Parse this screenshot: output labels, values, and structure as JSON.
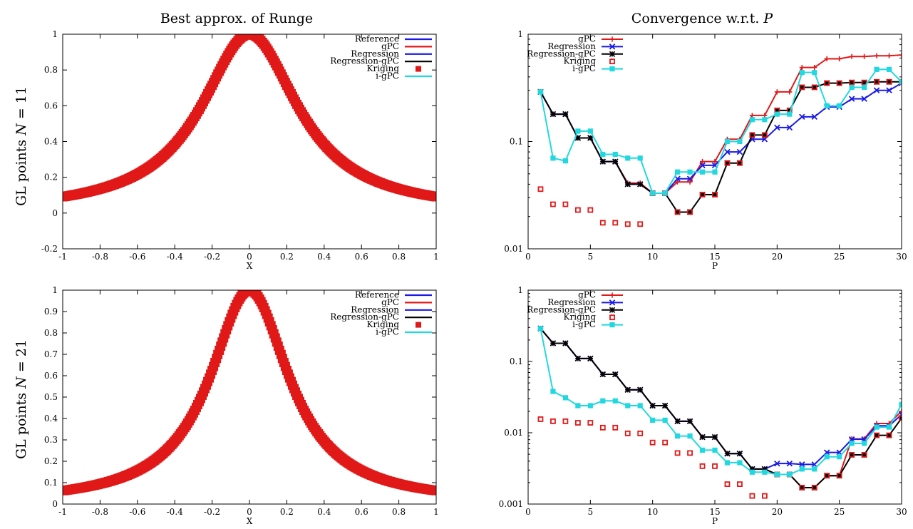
{
  "figure": {
    "col_titles": [
      "Best approx. of Runge",
      "Convergence w.r.t. "
    ],
    "col_title_italic": [
      "",
      "P"
    ],
    "row_labels": [
      {
        "text": "GL points ",
        "italic": "N",
        "rest": " = 11"
      },
      {
        "text": "GL points ",
        "italic": "N",
        "rest": " = 21"
      }
    ]
  },
  "colors": {
    "Reference": "#1a1ae6",
    "gPC": "#e01818",
    "Regression": "#1a1ae6",
    "Regression-gPC": "#000000",
    "Kriging": "#e01818",
    "i-gPC": "#22d8e0"
  },
  "chart_data": [
    {
      "id": "approx_N11",
      "type": "line",
      "title": "",
      "xlabel": "X",
      "ylabel": "",
      "xlim": [
        -1,
        1
      ],
      "ylim": [
        -0.2,
        1
      ],
      "xticks": [
        -1,
        -0.8,
        -0.6,
        -0.4,
        -0.2,
        0,
        0.2,
        0.4,
        0.6,
        0.8,
        1
      ],
      "xtick_labels": [
        "-1",
        "-0.8",
        "-0.6",
        "-0.4",
        "-0.2",
        "0",
        "0.2",
        "0.4",
        "0.6",
        "0.8",
        "1"
      ],
      "yticks": [
        -0.2,
        0,
        0.2,
        0.4,
        0.6,
        0.8,
        1
      ],
      "ytick_labels": [
        "-0.2",
        "0",
        "0.2",
        "0.4",
        "0.6",
        "0.8",
        "1"
      ],
      "log_y": false,
      "grid": false,
      "legend_position": "top-right",
      "legend": [
        "Reference",
        "gPC",
        "Regression",
        "Regression-gPC",
        "Kriging",
        "i-gPC"
      ],
      "runge_scale": 10,
      "nodes": 11,
      "series": [
        {
          "name": "Reference",
          "kind": "runge"
        },
        {
          "name": "gPC",
          "kind": "interp"
        },
        {
          "name": "Regression",
          "kind": "interp"
        },
        {
          "name": "Regression-gPC",
          "kind": "interp"
        },
        {
          "name": "Kriging",
          "kind": "kriging"
        },
        {
          "name": "i-gPC",
          "kind": "interp"
        }
      ]
    },
    {
      "id": "conv_N11",
      "type": "line",
      "title": "",
      "xlabel": "P",
      "ylabel": "",
      "xlim": [
        0,
        30
      ],
      "ylim": [
        0.01,
        1
      ],
      "xticks": [
        0,
        5,
        10,
        15,
        20,
        25,
        30
      ],
      "xtick_labels": [
        "0",
        "5",
        "10",
        "15",
        "20",
        "25",
        "30"
      ],
      "yticks": [
        0.01,
        0.1,
        1
      ],
      "ytick_labels": [
        "0.01",
        "0.1",
        "1"
      ],
      "log_y": true,
      "grid": false,
      "legend_position": "top-left",
      "legend": [
        "gPC",
        "Regression",
        "Regression-gPC",
        "Kriging",
        "i-gPC"
      ],
      "series": [
        {
          "name": "gPC",
          "marker": "plus",
          "x": [
            1,
            2,
            3,
            4,
            5,
            6,
            7,
            8,
            9,
            10,
            11,
            12,
            13,
            14,
            15,
            16,
            17,
            18,
            19,
            20,
            21,
            22,
            23,
            24,
            25,
            26,
            27,
            28,
            29,
            30
          ],
          "values": [
            0.29,
            0.18,
            0.18,
            0.108,
            0.108,
            0.065,
            0.065,
            0.041,
            0.041,
            0.033,
            0.033,
            0.042,
            0.042,
            0.065,
            0.065,
            0.105,
            0.105,
            0.175,
            0.175,
            0.29,
            0.29,
            0.49,
            0.49,
            0.59,
            0.59,
            0.62,
            0.62,
            0.63,
            0.63,
            0.64
          ]
        },
        {
          "name": "Regression",
          "marker": "x",
          "x": [
            1,
            2,
            3,
            4,
            5,
            6,
            7,
            8,
            9,
            10,
            11,
            12,
            13,
            14,
            15,
            16,
            17,
            18,
            19,
            20,
            21,
            22,
            23,
            24,
            25,
            26,
            27,
            28,
            29,
            30
          ],
          "values": [
            0.29,
            0.18,
            0.18,
            0.108,
            0.108,
            0.065,
            0.065,
            0.04,
            0.04,
            0.033,
            0.033,
            0.045,
            0.045,
            0.06,
            0.06,
            0.08,
            0.08,
            0.105,
            0.105,
            0.135,
            0.135,
            0.17,
            0.17,
            0.21,
            0.21,
            0.25,
            0.25,
            0.3,
            0.3,
            0.35
          ]
        },
        {
          "name": "Regression-gPC",
          "marker": "star",
          "x": [
            1,
            2,
            3,
            4,
            5,
            6,
            7,
            8,
            9,
            10,
            11,
            12,
            13,
            14,
            15,
            16,
            17,
            18,
            19,
            20,
            21,
            22,
            23,
            24,
            25,
            26,
            27,
            28,
            29,
            30
          ],
          "values": [
            0.29,
            0.18,
            0.18,
            0.108,
            0.108,
            0.065,
            0.065,
            0.04,
            0.04,
            0.033,
            0.033,
            0.022,
            0.022,
            0.032,
            0.032,
            0.063,
            0.063,
            0.115,
            0.115,
            0.195,
            0.195,
            0.32,
            0.32,
            0.35,
            0.35,
            0.355,
            0.355,
            0.36,
            0.36,
            0.36
          ]
        },
        {
          "name": "Kriging",
          "marker": "opensquare",
          "line": false,
          "x": [
            1,
            2,
            3,
            4,
            5,
            6,
            7,
            8,
            9,
            10,
            11,
            12,
            13,
            14,
            15,
            16,
            17,
            18,
            19,
            20,
            21,
            22,
            23,
            24,
            25,
            26,
            27,
            28,
            29,
            30
          ],
          "values": [
            0.036,
            0.026,
            0.026,
            0.023,
            0.023,
            0.0175,
            0.0175,
            0.017,
            0.017,
            0.033,
            0.033,
            0.022,
            0.022,
            0.032,
            0.032,
            0.063,
            0.063,
            0.115,
            0.115,
            0.195,
            0.195,
            0.32,
            0.32,
            0.35,
            0.35,
            0.355,
            0.355,
            0.36,
            0.36,
            0.36
          ]
        },
        {
          "name": "i-gPC",
          "marker": "filledsquare",
          "x": [
            1,
            2,
            3,
            4,
            5,
            6,
            7,
            8,
            9,
            10,
            11,
            12,
            13,
            14,
            15,
            16,
            17,
            18,
            19,
            20,
            21,
            22,
            23,
            24,
            25,
            26,
            27,
            28,
            29,
            30
          ],
          "values": [
            0.29,
            0.07,
            0.066,
            0.125,
            0.125,
            0.076,
            0.076,
            0.07,
            0.07,
            0.033,
            0.033,
            0.052,
            0.052,
            0.052,
            0.052,
            0.1,
            0.1,
            0.16,
            0.16,
            0.18,
            0.18,
            0.44,
            0.44,
            0.215,
            0.215,
            0.32,
            0.32,
            0.47,
            0.47,
            0.36
          ]
        }
      ]
    },
    {
      "id": "approx_N21",
      "type": "line",
      "title": "",
      "xlabel": "X",
      "ylabel": "",
      "xlim": [
        -1,
        1
      ],
      "ylim": [
        0,
        1
      ],
      "xticks": [
        -1,
        -0.8,
        -0.6,
        -0.4,
        -0.2,
        0,
        0.2,
        0.4,
        0.6,
        0.8,
        1
      ],
      "xtick_labels": [
        "-1",
        "-0.8",
        "-0.6",
        "-0.4",
        "-0.2",
        "0",
        "0.2",
        "0.4",
        "0.6",
        "0.8",
        "1"
      ],
      "yticks": [
        0,
        0.1,
        0.2,
        0.3,
        0.4,
        0.5,
        0.6,
        0.7,
        0.8,
        0.9,
        1
      ],
      "ytick_labels": [
        "0",
        "0.1",
        "0.2",
        "0.3",
        "0.4",
        "0.5",
        "0.6",
        "0.7",
        "0.8",
        "0.9",
        "1"
      ],
      "log_y": false,
      "grid": false,
      "legend_position": "top-right",
      "legend": [
        "Reference",
        "gPC",
        "Regression",
        "Regression-gPC",
        "Kriging",
        "i-gPC"
      ],
      "runge_scale": 15,
      "nodes": 21,
      "series": [
        {
          "name": "Reference",
          "kind": "runge"
        },
        {
          "name": "gPC",
          "kind": "runge"
        },
        {
          "name": "Regression",
          "kind": "runge"
        },
        {
          "name": "Regression-gPC",
          "kind": "runge"
        },
        {
          "name": "Kriging",
          "kind": "kriging"
        },
        {
          "name": "i-gPC",
          "kind": "runge"
        }
      ]
    },
    {
      "id": "conv_N21",
      "type": "line",
      "title": "",
      "xlabel": "P",
      "ylabel": "",
      "xlim": [
        0,
        30
      ],
      "ylim": [
        0.001,
        1
      ],
      "xticks": [
        0,
        5,
        10,
        15,
        20,
        25,
        30
      ],
      "xtick_labels": [
        "0",
        "5",
        "10",
        "15",
        "20",
        "25",
        "30"
      ],
      "yticks": [
        0.001,
        0.01,
        0.1,
        1
      ],
      "ytick_labels": [
        "0.001",
        "0.01",
        "0.1",
        "1"
      ],
      "log_y": true,
      "grid": false,
      "legend_position": "top-left",
      "legend": [
        "gPC",
        "Regression",
        "Regression-gPC",
        "Kriging",
        "i-gPC"
      ],
      "series": [
        {
          "name": "gPC",
          "marker": "plus",
          "x": [
            1,
            2,
            3,
            4,
            5,
            6,
            7,
            8,
            9,
            10,
            11,
            12,
            13,
            14,
            15,
            16,
            17,
            18,
            19,
            20,
            21,
            22,
            23,
            24,
            25,
            26,
            27,
            28,
            29,
            30
          ],
          "values": [
            0.29,
            0.18,
            0.18,
            0.11,
            0.11,
            0.066,
            0.066,
            0.04,
            0.04,
            0.024,
            0.024,
            0.0145,
            0.0145,
            0.0087,
            0.0087,
            0.0051,
            0.0051,
            0.0031,
            0.0031,
            0.0026,
            0.0026,
            0.0017,
            0.0017,
            0.0025,
            0.0025,
            0.0082,
            0.0082,
            0.0135,
            0.0135,
            0.02
          ]
        },
        {
          "name": "Regression",
          "marker": "x",
          "x": [
            1,
            2,
            3,
            4,
            5,
            6,
            7,
            8,
            9,
            10,
            11,
            12,
            13,
            14,
            15,
            16,
            17,
            18,
            19,
            20,
            21,
            22,
            23,
            24,
            25,
            26,
            27,
            28,
            29,
            30
          ],
          "values": [
            0.29,
            0.18,
            0.18,
            0.11,
            0.11,
            0.066,
            0.066,
            0.04,
            0.04,
            0.024,
            0.024,
            0.0145,
            0.0145,
            0.0087,
            0.0087,
            0.0051,
            0.0051,
            0.0031,
            0.0031,
            0.0037,
            0.0037,
            0.0036,
            0.0036,
            0.0053,
            0.0053,
            0.0081,
            0.0081,
            0.0125,
            0.0125,
            0.018
          ]
        },
        {
          "name": "Regression-gPC",
          "marker": "star",
          "x": [
            1,
            2,
            3,
            4,
            5,
            6,
            7,
            8,
            9,
            10,
            11,
            12,
            13,
            14,
            15,
            16,
            17,
            18,
            19,
            20,
            21,
            22,
            23,
            24,
            25,
            26,
            27,
            28,
            29,
            30
          ],
          "values": [
            0.29,
            0.18,
            0.18,
            0.11,
            0.11,
            0.066,
            0.066,
            0.04,
            0.04,
            0.024,
            0.024,
            0.0145,
            0.0145,
            0.0087,
            0.0087,
            0.0051,
            0.0051,
            0.0031,
            0.0031,
            0.0026,
            0.0026,
            0.0017,
            0.0017,
            0.0025,
            0.0025,
            0.0049,
            0.0049,
            0.0092,
            0.0092,
            0.016
          ]
        },
        {
          "name": "Kriging",
          "marker": "opensquare",
          "line": false,
          "x": [
            1,
            2,
            3,
            4,
            5,
            6,
            7,
            8,
            9,
            10,
            11,
            12,
            13,
            14,
            15,
            16,
            17,
            18,
            19,
            20,
            21,
            22,
            23,
            24,
            25,
            26,
            27,
            28,
            29,
            30
          ],
          "values": [
            0.0155,
            0.0145,
            0.0145,
            0.0138,
            0.0138,
            0.0118,
            0.0118,
            0.0098,
            0.0098,
            0.0073,
            0.0073,
            0.0052,
            0.0052,
            0.0034,
            0.0034,
            0.0019,
            0.0019,
            0.0013,
            0.0013,
            0.0026,
            0.0026,
            0.0017,
            0.0017,
            0.0025,
            0.0025,
            0.0049,
            0.0049,
            0.0092,
            0.0092,
            0.016
          ]
        },
        {
          "name": "i-gPC",
          "marker": "filledsquare",
          "x": [
            1,
            2,
            3,
            4,
            5,
            6,
            7,
            8,
            9,
            10,
            11,
            12,
            13,
            14,
            15,
            16,
            17,
            18,
            19,
            20,
            21,
            22,
            23,
            24,
            25,
            26,
            27,
            28,
            29,
            30
          ],
          "values": [
            0.29,
            0.038,
            0.031,
            0.024,
            0.024,
            0.028,
            0.028,
            0.024,
            0.024,
            0.015,
            0.015,
            0.009,
            0.009,
            0.0057,
            0.0057,
            0.0038,
            0.0038,
            0.0028,
            0.0028,
            0.0026,
            0.0026,
            0.0031,
            0.0031,
            0.0046,
            0.0046,
            0.0071,
            0.0071,
            0.012,
            0.012,
            0.025
          ]
        }
      ]
    }
  ]
}
